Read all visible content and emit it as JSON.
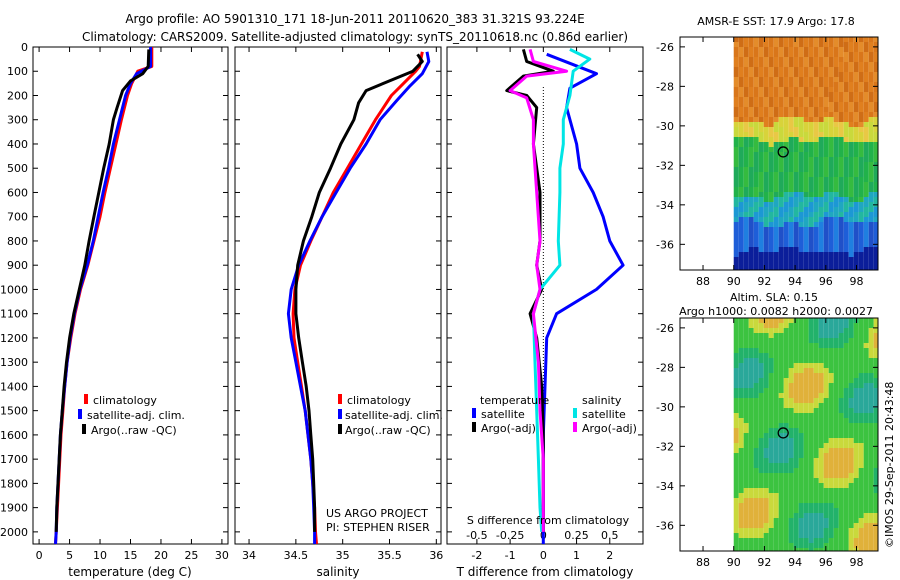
{
  "header": {
    "title_line1": "Argo profile: AO 5901310_171 18-Jun-2011 20110620_383 31.321S 93.224E",
    "title_line2": "Climatology: CARS2009. Satellite-adjusted climatology: synTS_20110618.nc (0.86d earlier)"
  },
  "colors": {
    "climatology": "#ff0000",
    "satellite": "#0000ff",
    "argo": "#000000",
    "salinity_sat": "#00e5e5",
    "salinity_argo": "#ff00ff"
  },
  "depth_ticks": [
    "0",
    "100",
    "200",
    "300",
    "400",
    "500",
    "600",
    "700",
    "800",
    "900",
    "1000",
    "1100",
    "1200",
    "1300",
    "1400",
    "1500",
    "1600",
    "1700",
    "1800",
    "1900",
    "2000"
  ],
  "legend_profile": {
    "clim": "climatology",
    "sat": "satellite-adj. clim.",
    "argo": "Argo(..raw -QC)"
  },
  "legend_diff": {
    "temp_title": "temperature",
    "sal_title": "salinity",
    "sat": "satellite",
    "argo": "Argo(-adj)"
  },
  "project": {
    "line1": "US ARGO PROJECT",
    "line2": "PI: STEPHEN RISER"
  },
  "right_panels": {
    "sst_title": "AMSR-E SST: 17.9 Argo: 17.8",
    "sla_title1": "Altim. SLA: 0.15",
    "sla_title2": "Argo h1000: 0.0082 h2000: 0.0027",
    "lat_ticks": [
      "-26",
      "-28",
      "-30",
      "-32",
      "-34",
      "-36"
    ],
    "lon_ticks": [
      "88",
      "90",
      "92",
      "94",
      "96",
      "98"
    ],
    "credit": "©IMOS 29-Sep-2011 20:43:48",
    "argo_position": {
      "lon": 93.224,
      "lat": -31.321
    }
  },
  "chart_data": [
    {
      "type": "line",
      "xlabel": "temperature (deg C)",
      "ylabel": "",
      "xlim": [
        -1,
        31
      ],
      "ylim": [
        2050,
        0
      ],
      "xticks": [
        "0",
        "5",
        "10",
        "15",
        "20",
        "25",
        "30"
      ],
      "series": [
        {
          "name": "climatology",
          "color": "#ff0000",
          "points": [
            [
              18.5,
              0
            ],
            [
              18.5,
              80
            ],
            [
              16.2,
              100
            ],
            [
              15.2,
              150
            ],
            [
              14.5,
              200
            ],
            [
              13.5,
              300
            ],
            [
              12.6,
              400
            ],
            [
              11.7,
              500
            ],
            [
              10.8,
              600
            ],
            [
              10.0,
              700
            ],
            [
              9.0,
              800
            ],
            [
              8.0,
              900
            ],
            [
              6.8,
              1000
            ],
            [
              5.9,
              1100
            ],
            [
              5.2,
              1200
            ],
            [
              4.6,
              1300
            ],
            [
              4.2,
              1400
            ],
            [
              3.9,
              1500
            ],
            [
              3.6,
              1600
            ],
            [
              3.4,
              1700
            ],
            [
              3.2,
              1800
            ],
            [
              3.0,
              1900
            ],
            [
              2.8,
              2000
            ],
            [
              2.7,
              2050
            ]
          ]
        },
        {
          "name": "satellite-adj. clim.",
          "color": "#0000ff",
          "points": [
            [
              18.3,
              0
            ],
            [
              18.3,
              80
            ],
            [
              16.0,
              110
            ],
            [
              15.0,
              150
            ],
            [
              14.2,
              200
            ],
            [
              13.2,
              300
            ],
            [
              12.2,
              400
            ],
            [
              11.4,
              500
            ],
            [
              10.5,
              600
            ],
            [
              9.7,
              700
            ],
            [
              8.9,
              800
            ],
            [
              7.9,
              900
            ],
            [
              6.7,
              1000
            ],
            [
              5.8,
              1100
            ],
            [
              5.1,
              1200
            ],
            [
              4.6,
              1300
            ],
            [
              4.2,
              1400
            ],
            [
              3.8,
              1500
            ],
            [
              3.5,
              1600
            ],
            [
              3.3,
              1700
            ],
            [
              3.1,
              1800
            ],
            [
              2.9,
              1900
            ],
            [
              2.8,
              2000
            ],
            [
              2.7,
              2050
            ]
          ]
        },
        {
          "name": "Argo(..raw -QC)",
          "color": "#000000",
          "points": [
            [
              18.0,
              10
            ],
            [
              17.9,
              80
            ],
            [
              17.0,
              110
            ],
            [
              15.0,
              140
            ],
            [
              13.7,
              180
            ],
            [
              12.8,
              250
            ],
            [
              12.2,
              300
            ],
            [
              11.5,
              400
            ],
            [
              10.6,
              500
            ],
            [
              9.8,
              600
            ],
            [
              9.0,
              700
            ],
            [
              8.2,
              800
            ],
            [
              7.5,
              900
            ],
            [
              6.6,
              1000
            ],
            [
              5.7,
              1100
            ],
            [
              5.0,
              1200
            ],
            [
              4.5,
              1300
            ],
            [
              4.1,
              1400
            ],
            [
              3.8,
              1500
            ],
            [
              3.5,
              1600
            ],
            [
              3.3,
              1700
            ],
            [
              3.1,
              1800
            ],
            [
              2.9,
              1900
            ],
            [
              2.8,
              2000
            ]
          ]
        }
      ]
    },
    {
      "type": "line",
      "xlabel": "salinity",
      "ylabel": "",
      "xlim": [
        33.85,
        36.05
      ],
      "ylim": [
        2050,
        0
      ],
      "xticks": [
        "34",
        "34.5",
        "35",
        "35.5",
        "36"
      ],
      "series": [
        {
          "name": "climatology",
          "color": "#ff0000",
          "points": [
            [
              35.85,
              20
            ],
            [
              35.82,
              80
            ],
            [
              35.78,
              100
            ],
            [
              35.65,
              150
            ],
            [
              35.52,
              200
            ],
            [
              35.35,
              300
            ],
            [
              35.2,
              400
            ],
            [
              35.05,
              500
            ],
            [
              34.9,
              600
            ],
            [
              34.78,
              700
            ],
            [
              34.66,
              800
            ],
            [
              34.55,
              900
            ],
            [
              34.49,
              1000
            ],
            [
              34.47,
              1100
            ],
            [
              34.48,
              1200
            ],
            [
              34.52,
              1300
            ],
            [
              34.56,
              1400
            ],
            [
              34.6,
              1500
            ],
            [
              34.63,
              1600
            ],
            [
              34.66,
              1700
            ],
            [
              34.68,
              1800
            ],
            [
              34.7,
              1900
            ],
            [
              34.71,
              2000
            ],
            [
              34.72,
              2050
            ]
          ]
        },
        {
          "name": "satellite-adj. clim.",
          "color": "#0000ff",
          "points": [
            [
              35.9,
              20
            ],
            [
              35.92,
              60
            ],
            [
              35.85,
              110
            ],
            [
              35.72,
              160
            ],
            [
              35.58,
              220
            ],
            [
              35.4,
              300
            ],
            [
              35.25,
              400
            ],
            [
              35.08,
              500
            ],
            [
              34.93,
              600
            ],
            [
              34.78,
              700
            ],
            [
              34.65,
              800
            ],
            [
              34.53,
              900
            ],
            [
              34.45,
              1000
            ],
            [
              34.42,
              1100
            ],
            [
              34.45,
              1200
            ],
            [
              34.5,
              1300
            ],
            [
              34.55,
              1400
            ],
            [
              34.6,
              1500
            ],
            [
              34.63,
              1600
            ],
            [
              34.66,
              1700
            ],
            [
              34.68,
              1800
            ],
            [
              34.69,
              1900
            ],
            [
              34.7,
              2000
            ],
            [
              34.7,
              2050
            ]
          ]
        },
        {
          "name": "Argo(..raw -QC)",
          "color": "#000000",
          "points": [
            [
              35.8,
              30
            ],
            [
              35.85,
              60
            ],
            [
              35.75,
              100
            ],
            [
              35.5,
              140
            ],
            [
              35.25,
              180
            ],
            [
              35.17,
              230
            ],
            [
              35.12,
              300
            ],
            [
              34.98,
              400
            ],
            [
              34.87,
              500
            ],
            [
              34.75,
              600
            ],
            [
              34.67,
              700
            ],
            [
              34.58,
              800
            ],
            [
              34.52,
              900
            ],
            [
              34.5,
              1000
            ],
            [
              34.5,
              1100
            ],
            [
              34.53,
              1200
            ],
            [
              34.57,
              1300
            ],
            [
              34.61,
              1400
            ],
            [
              34.64,
              1500
            ],
            [
              34.66,
              1600
            ],
            [
              34.68,
              1700
            ],
            [
              34.69,
              1800
            ],
            [
              34.7,
              1900
            ],
            [
              34.7,
              2000
            ]
          ]
        }
      ]
    },
    {
      "type": "line",
      "xlabel": "T difference from climatology",
      "ylabel": "",
      "xlim": [
        -2.9,
        3.0
      ],
      "ylim": [
        2050,
        0
      ],
      "xticks": [
        "-2",
        "-1",
        "0",
        "1",
        "2"
      ],
      "top_xlabel": "S difference from climatology",
      "top_xticks": [
        "-0.5",
        "-0.25",
        "0",
        "0.25",
        "0.5"
      ],
      "series": [
        {
          "name": "satellite",
          "color": "#0000ff",
          "points": [
            [
              0.1,
              30
            ],
            [
              1.6,
              110
            ],
            [
              0.8,
              170
            ],
            [
              0.7,
              250
            ],
            [
              1.0,
              400
            ],
            [
              1.1,
              500
            ],
            [
              1.5,
              600
            ],
            [
              1.8,
              700
            ],
            [
              2.0,
              800
            ],
            [
              2.4,
              900
            ],
            [
              1.6,
              1000
            ],
            [
              0.4,
              1100
            ],
            [
              0.1,
              1200
            ],
            [
              0.05,
              1400
            ],
            [
              0.0,
              1600
            ],
            [
              0.0,
              1800
            ],
            [
              0.0,
              2000
            ],
            [
              0.0,
              2050
            ]
          ]
        },
        {
          "name": "Argo(-adj)",
          "color": "#000000",
          "points": [
            [
              -0.6,
              10
            ],
            [
              -0.5,
              60
            ],
            [
              0.3,
              100
            ],
            [
              -0.6,
              120
            ],
            [
              -1.1,
              180
            ],
            [
              -0.5,
              200
            ],
            [
              -0.2,
              250
            ],
            [
              -0.3,
              400
            ],
            [
              -0.1,
              600
            ],
            [
              -0.1,
              800
            ],
            [
              -0.2,
              900
            ],
            [
              -0.05,
              1000
            ],
            [
              -0.4,
              1100
            ],
            [
              -0.2,
              1200
            ],
            [
              -0.05,
              1400
            ],
            [
              0.0,
              1600
            ],
            [
              0.0,
              1800
            ],
            [
              0.0,
              2000
            ]
          ]
        },
        {
          "name": "satellite (salinity)",
          "color": "#00e5e5",
          "points": [
            [
              0.8,
              10
            ],
            [
              1.4,
              50
            ],
            [
              0.9,
              100
            ],
            [
              0.8,
              200
            ],
            [
              0.6,
              300
            ],
            [
              0.6,
              400
            ],
            [
              0.5,
              500
            ],
            [
              0.5,
              600
            ],
            [
              0.45,
              800
            ],
            [
              0.5,
              900
            ],
            [
              -0.1,
              1000
            ],
            [
              -0.3,
              1100
            ],
            [
              -0.25,
              1300
            ],
            [
              -0.2,
              1500
            ],
            [
              -0.15,
              1700
            ],
            [
              -0.1,
              1900
            ],
            [
              -0.05,
              2000
            ]
          ]
        },
        {
          "name": "Argo(-adj) (salinity)",
          "color": "#ff00ff",
          "points": [
            [
              -0.4,
              10
            ],
            [
              -0.3,
              60
            ],
            [
              0.7,
              100
            ],
            [
              -0.5,
              120
            ],
            [
              -1.0,
              180
            ],
            [
              -0.5,
              210
            ],
            [
              -0.3,
              300
            ],
            [
              -0.3,
              400
            ],
            [
              -0.2,
              600
            ],
            [
              -0.1,
              800
            ],
            [
              -0.2,
              900
            ],
            [
              -0.1,
              1000
            ],
            [
              -0.3,
              1100
            ],
            [
              -0.15,
              1300
            ],
            [
              -0.1,
              1500
            ],
            [
              0.0,
              1700
            ],
            [
              0.0,
              2000
            ]
          ]
        }
      ]
    },
    {
      "type": "heatmap",
      "title": "AMSR-E SST: 17.9 Argo: 17.8",
      "xlim": [
        86.5,
        99.4
      ],
      "ylim": [
        -37.3,
        -25.5
      ],
      "xticks": [
        88,
        90,
        92,
        94,
        96,
        98
      ],
      "yticks": [
        -26,
        -28,
        -30,
        -32,
        -34,
        -36
      ],
      "point": [
        93.224,
        -31.321
      ]
    },
    {
      "type": "heatmap",
      "title": "Altim. SLA: 0.15",
      "xlim": [
        86.5,
        99.4
      ],
      "ylim": [
        -37.3,
        -25.5
      ],
      "xticks": [
        88,
        90,
        92,
        94,
        96,
        98
      ],
      "yticks": [
        -26,
        -28,
        -30,
        -32,
        -34,
        -36
      ],
      "point": [
        93.224,
        -31.321
      ]
    }
  ]
}
